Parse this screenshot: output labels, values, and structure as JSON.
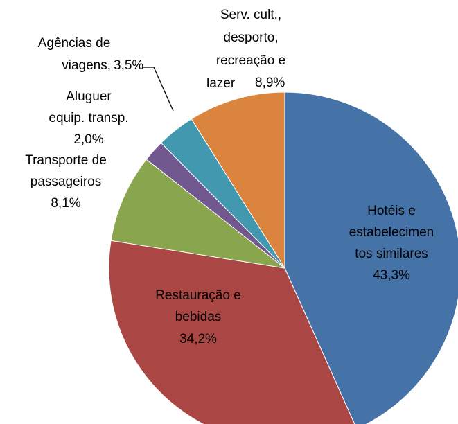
{
  "chart_data": {
    "type": "pie",
    "categories": [
      "Hotéis e\nestabelecimen\ntos similares",
      "Restauração e\nbebidas",
      "Transporte de\npassageiros",
      "Aluguer\nequip. transp.",
      "Agências de\nviagens,",
      "Serv. cult.,\ndesporto,\nrecreação e\nlazer"
    ],
    "values": [
      43.3,
      34.2,
      8.1,
      2.0,
      3.5,
      8.9
    ],
    "value_labels": [
      "43,3%",
      "34,2%",
      "8,1%",
      "2,0%",
      "3,5%",
      "8,9%"
    ],
    "colors": [
      "#4572a7",
      "#aa4643",
      "#89a54e",
      "#71588f",
      "#4198af",
      "#db843d"
    ]
  }
}
